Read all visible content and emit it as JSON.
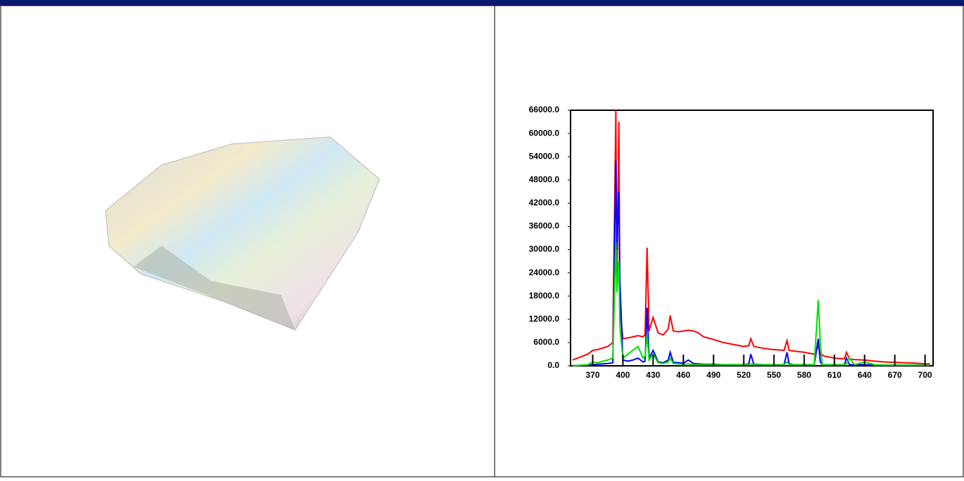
{
  "chart_data": {
    "type": "line",
    "x": [
      350,
      355,
      360,
      365,
      370,
      375,
      380,
      385,
      390,
      393,
      394,
      396,
      397,
      400,
      405,
      410,
      415,
      420,
      422,
      424,
      426,
      430,
      435,
      440,
      445,
      447,
      450,
      455,
      460,
      465,
      470,
      475,
      480,
      490,
      500,
      510,
      520,
      525,
      527,
      530,
      540,
      550,
      560,
      563,
      565,
      570,
      580,
      590,
      594,
      596,
      598,
      600,
      610,
      620,
      622,
      625,
      630,
      640,
      650,
      660,
      670,
      680,
      690,
      700,
      705
    ],
    "series": [
      {
        "color": "#ff0000",
        "values": [
          1500,
          2000,
          2500,
          3000,
          4000,
          4200,
          4600,
          5000,
          6000,
          66000,
          20000,
          63000,
          15000,
          7000,
          7200,
          7500,
          7800,
          7500,
          8000,
          30500,
          9000,
          12500,
          8500,
          8000,
          9500,
          13000,
          9000,
          8800,
          9000,
          9200,
          9000,
          8500,
          7500,
          6800,
          6000,
          5500,
          5000,
          5200,
          7000,
          5000,
          4500,
          4200,
          4000,
          6500,
          4000,
          3800,
          3500,
          3000,
          5000,
          3000,
          2800,
          2500,
          2000,
          1800,
          3500,
          1800,
          1600,
          1500,
          1200,
          1000,
          900,
          800,
          700,
          500,
          500
        ]
      },
      {
        "color": "#0000ff",
        "values": [
          100,
          100,
          150,
          200,
          300,
          400,
          500,
          600,
          800,
          53000,
          30000,
          45000,
          22000,
          1500,
          1200,
          1500,
          2000,
          1000,
          1200,
          15000,
          2000,
          4000,
          1000,
          800,
          1500,
          3500,
          900,
          800,
          700,
          1500,
          600,
          500,
          400,
          400,
          300,
          300,
          300,
          500,
          3000,
          400,
          300,
          300,
          300,
          3500,
          500,
          300,
          300,
          300,
          7000,
          1000,
          300,
          300,
          300,
          300,
          2000,
          300,
          300,
          300,
          200,
          200,
          200,
          200,
          200,
          200,
          200
        ]
      },
      {
        "color": "#00e000",
        "values": [
          50,
          100,
          200,
          300,
          1000,
          800,
          1200,
          1500,
          2000,
          32000,
          19000,
          27000,
          10000,
          2000,
          3000,
          4000,
          5000,
          2000,
          2500,
          8000,
          1500,
          3000,
          800,
          600,
          1000,
          2000,
          600,
          500,
          400,
          500,
          300,
          300,
          300,
          300,
          300,
          300,
          300,
          300,
          500,
          300,
          300,
          300,
          300,
          1000,
          300,
          300,
          300,
          300,
          17000,
          6000,
          300,
          300,
          300,
          300,
          500,
          2000,
          300,
          1000,
          300,
          200,
          200,
          200,
          200,
          200,
          200
        ]
      }
    ],
    "xlim": [
      348,
      708
    ],
    "ylim": [
      0,
      66000
    ],
    "xticks": [
      370,
      400,
      430,
      460,
      490,
      520,
      550,
      580,
      610,
      640,
      670,
      700
    ],
    "yticks": [
      {
        "value": 0,
        "label": "0.0"
      },
      {
        "value": 6000,
        "label": "6000.0"
      },
      {
        "value": 12000,
        "label": "12000.0"
      },
      {
        "value": 18000,
        "label": "18000.0"
      },
      {
        "value": 24000,
        "label": "24000.0"
      },
      {
        "value": 30000,
        "label": "30000.0"
      },
      {
        "value": 36000,
        "label": "36000.0"
      },
      {
        "value": 42000,
        "label": "42000.0"
      },
      {
        "value": 48000,
        "label": "48000.0"
      },
      {
        "value": 54000,
        "label": "54000.0"
      },
      {
        "value": 60000,
        "label": "60000.0"
      },
      {
        "value": 66000,
        "label": "66000.0"
      }
    ]
  }
}
